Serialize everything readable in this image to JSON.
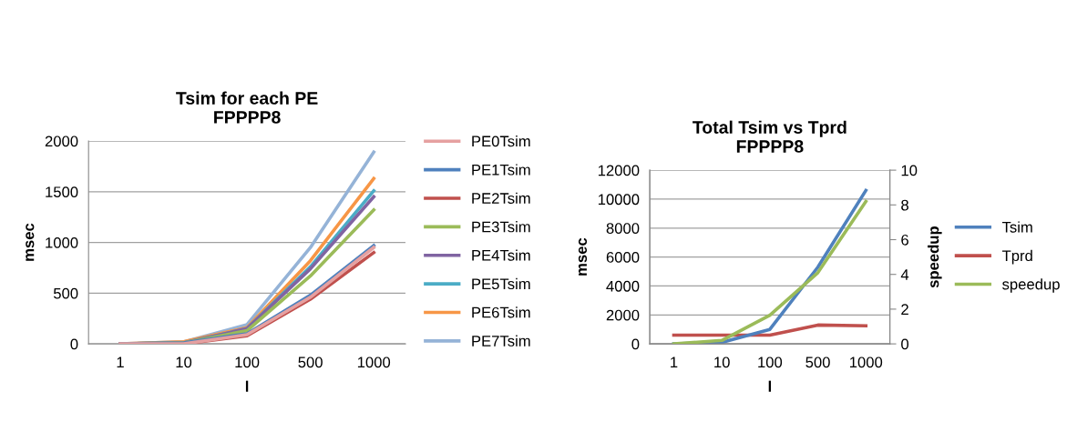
{
  "chart_data": [
    {
      "type": "line",
      "title": "Tsim for each PE\nFPPPP8",
      "xlabel": "l",
      "ylabel": "msec",
      "categories": [
        "1",
        "10",
        "100",
        "500",
        "1000"
      ],
      "ylim": [
        0,
        2000
      ],
      "yticks": [
        0,
        500,
        1000,
        1500,
        2000
      ],
      "grid": "y",
      "legend": "right",
      "series": [
        {
          "name": "PE0Tsim",
          "color": "#e6a0a0",
          "values": [
            0,
            0,
            90,
            460,
            950
          ]
        },
        {
          "name": "PE1Tsim",
          "color": "#4f81bd",
          "values": [
            0,
            10,
            100,
            480,
            970
          ]
        },
        {
          "name": "PE2Tsim",
          "color": "#c0504d",
          "values": [
            0,
            0,
            80,
            440,
            900
          ]
        },
        {
          "name": "PE3Tsim",
          "color": "#9bbb59",
          "values": [
            0,
            10,
            130,
            670,
            1320
          ]
        },
        {
          "name": "PE4Tsim",
          "color": "#8064a2",
          "values": [
            0,
            10,
            150,
            740,
            1450
          ]
        },
        {
          "name": "PE5Tsim",
          "color": "#4bacc6",
          "values": [
            0,
            10,
            150,
            760,
            1510
          ]
        },
        {
          "name": "PE6Tsim",
          "color": "#f79646",
          "values": [
            0,
            20,
            160,
            820,
            1630
          ]
        },
        {
          "name": "PE7Tsim",
          "color": "#95b3d7",
          "values": [
            0,
            20,
            190,
            950,
            1890
          ]
        }
      ]
    },
    {
      "type": "line",
      "title": "Total Tsim vs Tprd\nFPPPP8",
      "xlabel": "l",
      "ylabel": "msec",
      "y2label": "speedup",
      "categories": [
        "1",
        "10",
        "100",
        "500",
        "1000"
      ],
      "ylim": [
        0,
        12000
      ],
      "yticks": [
        0,
        2000,
        4000,
        6000,
        8000,
        10000,
        12000
      ],
      "y2lim": [
        0,
        10
      ],
      "y2ticks": [
        0,
        2,
        4,
        6,
        8,
        10
      ],
      "grid": "y",
      "legend": "right",
      "series": [
        {
          "name": "Tsim",
          "color": "#4f81bd",
          "values": [
            0,
            100,
            1000,
            5300,
            10600
          ]
        },
        {
          "name": "Tprd",
          "color": "#c0504d",
          "values": [
            600,
            600,
            600,
            1300,
            1250
          ]
        },
        {
          "name": "speedup",
          "color": "#9bbb59",
          "axis": "y2",
          "values": [
            0,
            0.2,
            1.65,
            4.1,
            8.2
          ]
        }
      ]
    }
  ]
}
